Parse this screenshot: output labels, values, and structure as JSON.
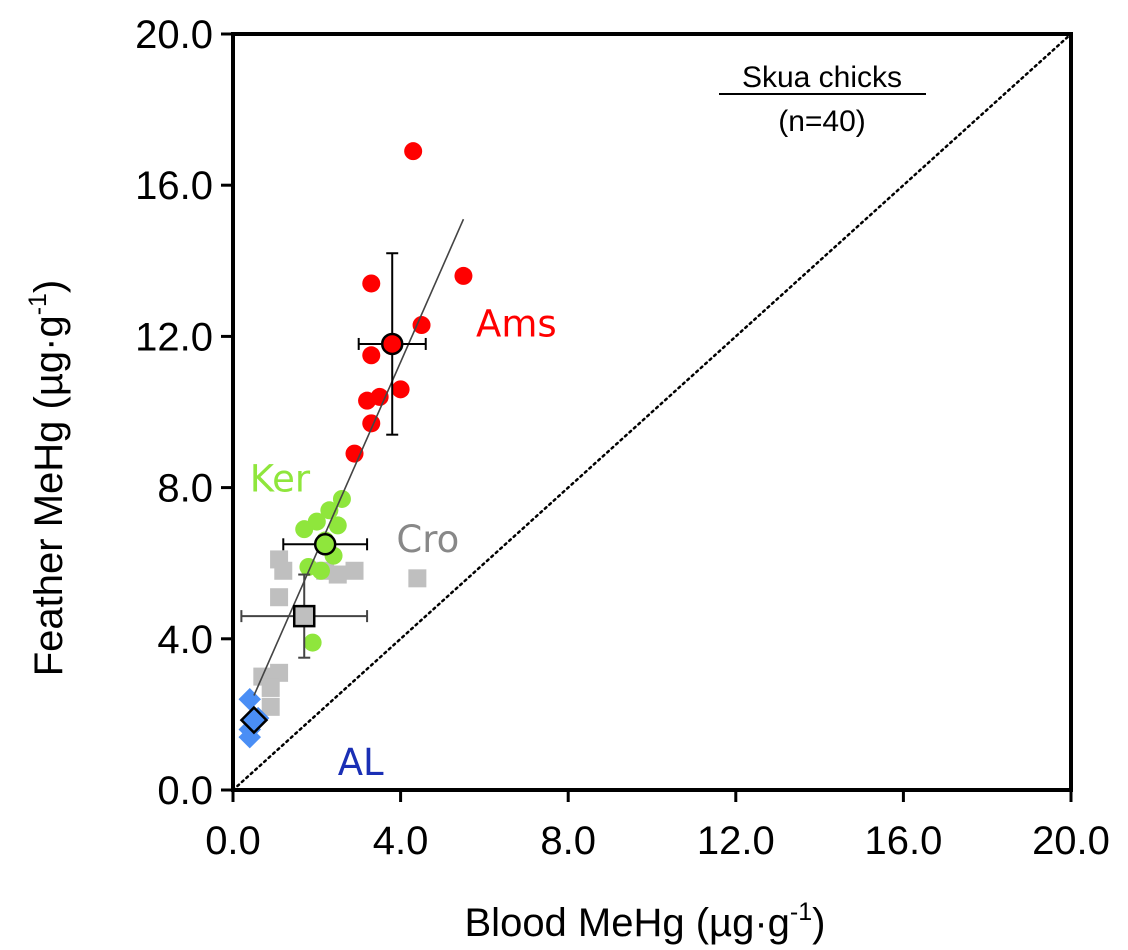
{
  "chart_data": {
    "type": "scatter",
    "xlabel": "Blood MeHg  (µg·g-1)",
    "ylabel": "Feather MeHg  (µg·g-1)",
    "xlabel_main": "Blood MeHg  (µg·g",
    "ylabel_main": "Feather MeHg  (µg·g",
    "label_exponent": "-1",
    "label_close": ")",
    "xlim": [
      0,
      20
    ],
    "ylim": [
      0,
      20
    ],
    "xticks": [
      "0.0",
      "4.0",
      "8.0",
      "12.0",
      "16.0",
      "20.0"
    ],
    "yticks": [
      "0.0",
      "4.0",
      "8.0",
      "12.0",
      "16.0",
      "20.0"
    ],
    "grid": false,
    "box_title": "Skua chicks",
    "box_subtitle": "(n=40)",
    "reference_line": {
      "style": "dotted",
      "from": [
        0,
        0
      ],
      "to": [
        20,
        20
      ]
    },
    "regression_line": {
      "from": [
        0.5,
        2.5
      ],
      "to": [
        5.5,
        15.1
      ]
    },
    "series": [
      {
        "name": "Ams",
        "color": "#ff0000",
        "marker": "circle",
        "points": [
          [
            4.3,
            16.9
          ],
          [
            5.5,
            13.6
          ],
          [
            3.3,
            13.4
          ],
          [
            4.5,
            12.3
          ],
          [
            3.3,
            11.5
          ],
          [
            4.0,
            10.6
          ],
          [
            3.5,
            10.4
          ],
          [
            3.2,
            10.3
          ],
          [
            3.3,
            9.7
          ],
          [
            2.9,
            8.9
          ]
        ],
        "mean": {
          "x": 3.8,
          "y": 11.8,
          "xerr": 0.8,
          "yerr": 2.4
        }
      },
      {
        "name": "Ker",
        "color": "#8fe63c",
        "marker": "circle",
        "points": [
          [
            2.6,
            7.7
          ],
          [
            2.3,
            7.4
          ],
          [
            2.0,
            7.1
          ],
          [
            2.5,
            7.0
          ],
          [
            1.7,
            6.9
          ],
          [
            2.2,
            6.6
          ],
          [
            2.4,
            6.2
          ],
          [
            1.8,
            5.9
          ],
          [
            2.1,
            5.8
          ],
          [
            1.9,
            3.9
          ]
        ],
        "mean": {
          "x": 2.2,
          "y": 6.5,
          "xerr": 1.0,
          "yerr": 0
        }
      },
      {
        "name": "Cro",
        "color": "#bfbfbf",
        "marker": "square",
        "points": [
          [
            1.1,
            6.1
          ],
          [
            1.2,
            5.8
          ],
          [
            2.2,
            5.8
          ],
          [
            2.5,
            5.7
          ],
          [
            2.9,
            5.8
          ],
          [
            4.4,
            5.6
          ],
          [
            1.1,
            5.1
          ],
          [
            0.7,
            3.0
          ],
          [
            1.1,
            3.1
          ],
          [
            0.9,
            2.7
          ],
          [
            0.9,
            2.2
          ]
        ],
        "mean": {
          "x": 1.7,
          "y": 4.6,
          "xerr": 1.5,
          "yerr": 1.1
        }
      },
      {
        "name": "AL",
        "color": "#4a8ef5",
        "marker": "diamond",
        "points": [
          [
            0.4,
            2.4
          ],
          [
            0.6,
            1.9
          ],
          [
            0.4,
            1.6
          ],
          [
            0.4,
            1.4
          ]
        ],
        "mean": {
          "x": 0.5,
          "y": 1.85,
          "xerr": 0,
          "yerr": 0
        }
      }
    ],
    "annotations": [
      {
        "text": "Ams",
        "color": "#ff0000",
        "x": 5.8,
        "y": 12.0
      },
      {
        "text": "Ker",
        "color": "#8fe63c",
        "x": 0.4,
        "y": 7.9
      },
      {
        "text": "Cro",
        "color": "#888888",
        "x": 3.9,
        "y": 6.3
      },
      {
        "text": "AL",
        "color": "#1a2fb5",
        "x": 2.5,
        "y": 0.4
      }
    ]
  }
}
